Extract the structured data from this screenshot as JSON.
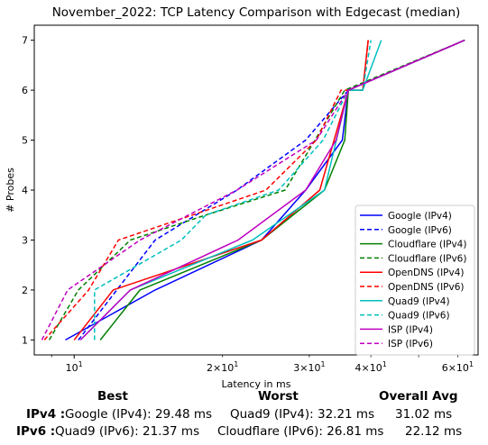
{
  "chart_data": {
    "type": "line",
    "title": "November_2022: TCP Latency Comparison with Edgecast (median)",
    "xlabel": "Latency in ms",
    "ylabel": "# Probes",
    "x_scale": "log",
    "xlim": [
      8.3,
      66
    ],
    "ylim": [
      0.7,
      7.3
    ],
    "x_ticks": [
      {
        "value": 10,
        "base": "10",
        "exp": "1",
        "mult": ""
      },
      {
        "value": 20,
        "base": "10",
        "exp": "1",
        "mult": "2×"
      },
      {
        "value": 30,
        "base": "10",
        "exp": "1",
        "mult": "3×"
      },
      {
        "value": 40,
        "base": "10",
        "exp": "1",
        "mult": "4×"
      },
      {
        "value": 60,
        "base": "10",
        "exp": "1",
        "mult": "6×"
      }
    ],
    "y_ticks": [
      1,
      2,
      3,
      4,
      5,
      6,
      7
    ],
    "legend_position": "lower-right",
    "series": [
      {
        "name": "Google (IPv4)",
        "color": "#0000ff",
        "dash": "solid",
        "points": [
          [
            9.6,
            1
          ],
          [
            14.6,
            2
          ],
          [
            24.0,
            3
          ],
          [
            29.5,
            4
          ],
          [
            35.0,
            5
          ],
          [
            36.0,
            6
          ],
          [
            62.0,
            7
          ]
        ]
      },
      {
        "name": "Google (IPv6)",
        "color": "#0000ff",
        "dash": "dashed",
        "points": [
          [
            10.2,
            1
          ],
          [
            14.6,
            3
          ],
          [
            21.4,
            4
          ],
          [
            29.5,
            5
          ],
          [
            36.0,
            6
          ],
          [
            62.0,
            7
          ]
        ]
      },
      {
        "name": "Cloudflare (IPv4)",
        "color": "#008000",
        "dash": "solid",
        "points": [
          [
            11.3,
            1
          ],
          [
            13.6,
            2
          ],
          [
            24.0,
            3
          ],
          [
            32.2,
            4
          ],
          [
            35.4,
            5
          ],
          [
            36.0,
            6
          ],
          [
            62.0,
            7
          ]
        ]
      },
      {
        "name": "Cloudflare (IPv6)",
        "color": "#008000",
        "dash": "dashed",
        "points": [
          [
            8.9,
            1
          ],
          [
            10.2,
            2
          ],
          [
            13.0,
            3
          ],
          [
            18.5,
            3.5
          ],
          [
            26.8,
            4
          ],
          [
            35.4,
            6
          ],
          [
            62.0,
            7
          ]
        ]
      },
      {
        "name": "OpenDNS (IPv4)",
        "color": "#ff0000",
        "dash": "solid",
        "points": [
          [
            10.0,
            1
          ],
          [
            12.0,
            2
          ],
          [
            24.0,
            3
          ],
          [
            31.5,
            4
          ],
          [
            36.0,
            6
          ],
          [
            38.5,
            6
          ],
          [
            39.5,
            7
          ]
        ]
      },
      {
        "name": "OpenDNS (IPv6)",
        "color": "#ff0000",
        "dash": "dashed",
        "points": [
          [
            8.7,
            1
          ],
          [
            10.7,
            2
          ],
          [
            12.3,
            3
          ],
          [
            24.5,
            4
          ],
          [
            31.0,
            5
          ],
          [
            34.8,
            6
          ],
          [
            38.5,
            6
          ],
          [
            39.5,
            7
          ]
        ]
      },
      {
        "name": "Quad9 (IPv4)",
        "color": "#00bfbf",
        "dash": "solid",
        "points": [
          [
            10.3,
            1
          ],
          [
            13.0,
            2
          ],
          [
            23.0,
            3
          ],
          [
            32.2,
            4
          ],
          [
            36.0,
            6
          ],
          [
            38.5,
            6
          ],
          [
            42.0,
            7
          ]
        ]
      },
      {
        "name": "Quad9 (IPv6)",
        "color": "#00bfbf",
        "dash": "dashed",
        "points": [
          [
            11.0,
            1
          ],
          [
            11.0,
            2
          ],
          [
            16.5,
            3
          ],
          [
            18.5,
            3.5
          ],
          [
            26.0,
            4
          ],
          [
            32.0,
            5
          ],
          [
            36.0,
            6
          ],
          [
            38.5,
            6
          ],
          [
            40.0,
            7
          ]
        ]
      },
      {
        "name": "ISP (IPv4)",
        "color": "#bf00bf",
        "dash": "solid",
        "points": [
          [
            10.3,
            1
          ],
          [
            13.0,
            2
          ],
          [
            21.5,
            3
          ],
          [
            29.5,
            4
          ],
          [
            34.0,
            5
          ],
          [
            36.0,
            6
          ],
          [
            62.0,
            7
          ]
        ]
      },
      {
        "name": "ISP (IPv6)",
        "color": "#bf00bf",
        "dash": "dashed",
        "points": [
          [
            8.6,
            1
          ],
          [
            9.7,
            2
          ],
          [
            13.6,
            3
          ],
          [
            21.4,
            4
          ],
          [
            31.0,
            5
          ],
          [
            36.0,
            6
          ],
          [
            62.0,
            7
          ]
        ]
      }
    ]
  },
  "summary": {
    "headers": {
      "best": "Best",
      "worst": "Worst",
      "avg": "Overall Avg"
    },
    "rows": [
      {
        "label": "IPv4 :",
        "best": "Google (IPv4): 29.48 ms",
        "worst": "Quad9 (IPv4): 32.21 ms",
        "avg": "31.02 ms"
      },
      {
        "label": "IPv6 :",
        "best": "Quad9 (IPv6): 21.37 ms",
        "worst": "Cloudflare (IPv6): 26.81 ms",
        "avg": "22.12 ms"
      }
    ]
  }
}
